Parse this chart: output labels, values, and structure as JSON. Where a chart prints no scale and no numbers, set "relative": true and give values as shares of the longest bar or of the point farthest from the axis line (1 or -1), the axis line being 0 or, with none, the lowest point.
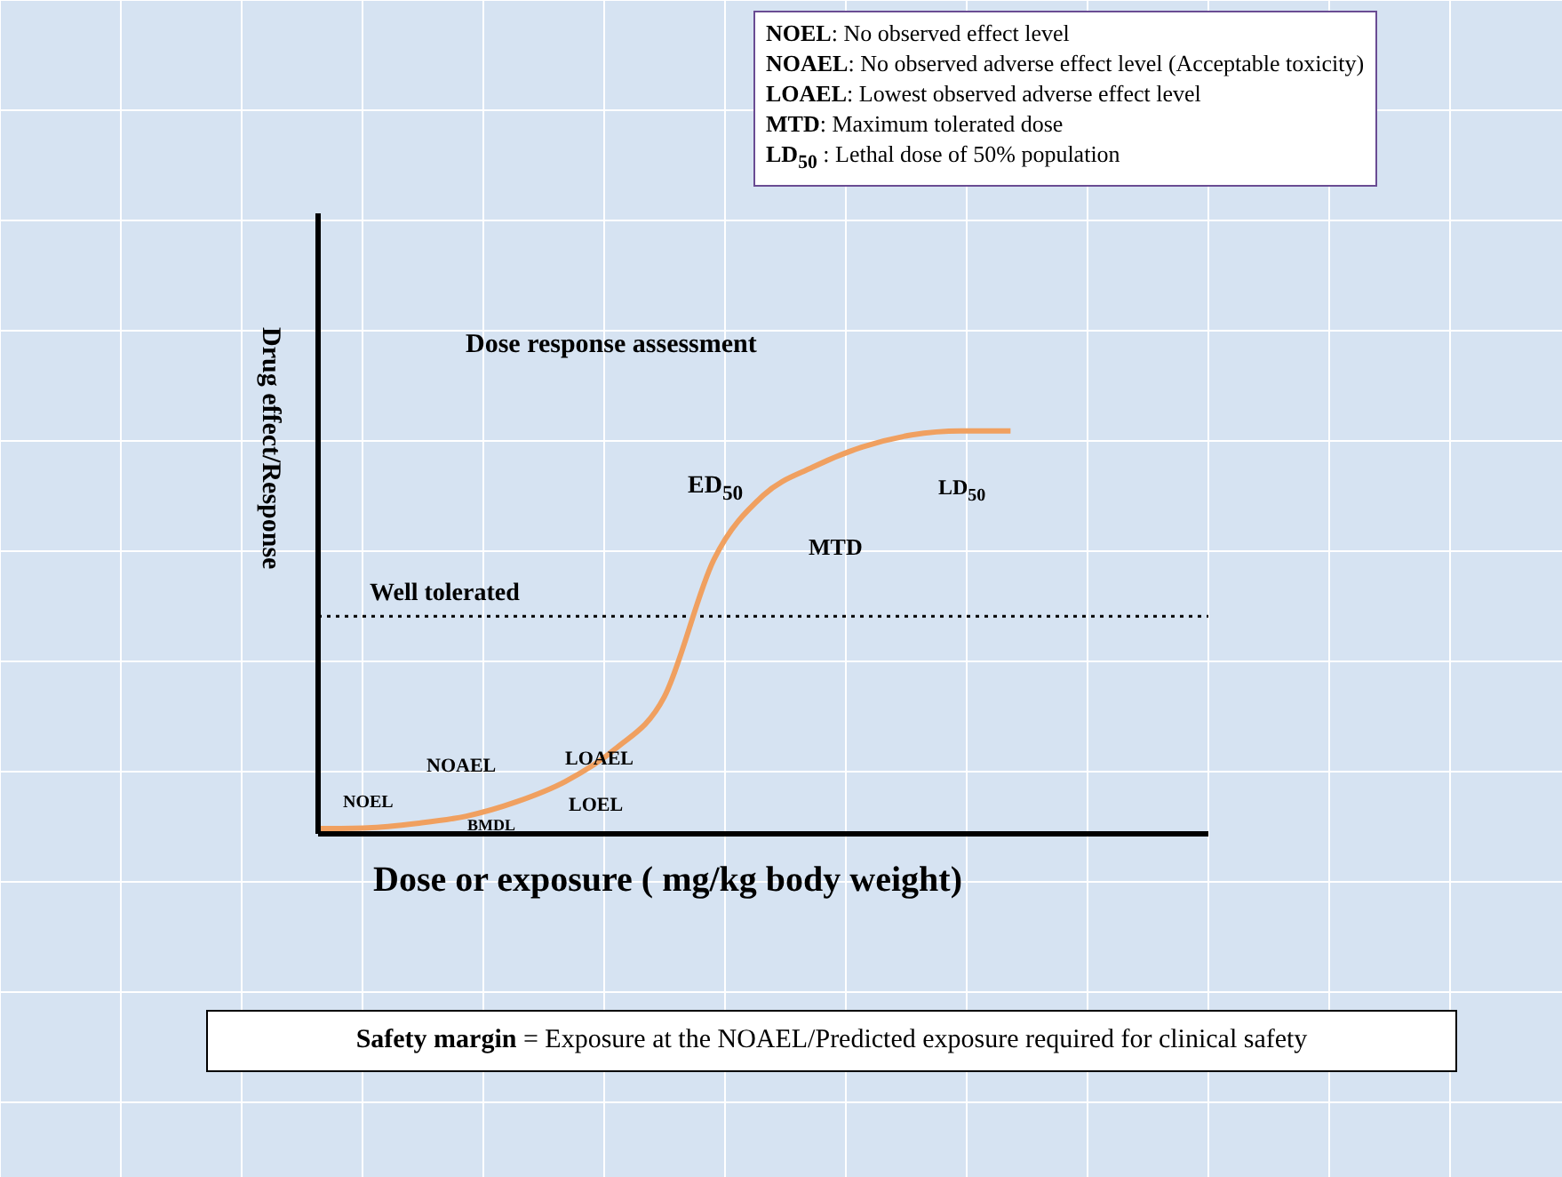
{
  "chart_data": {
    "type": "line",
    "relative": true,
    "title": "Dose response assessment",
    "xlabel": "Dose or exposure ( mg/kg body weight)",
    "ylabel": "Drug effect/Response",
    "categories": [
      null,
      null,
      null,
      null,
      null,
      null,
      null,
      null,
      null,
      null,
      null,
      null,
      null,
      null,
      null,
      null,
      null,
      null,
      null
    ],
    "series": [
      {
        "color": "#f0a060",
        "values": [
          0.013,
          0.015,
          0.026,
          0.044,
          0.079,
          0.13,
          0.21,
          0.34,
          0.68,
          0.84,
          0.91,
          0.96,
          0.99,
          1,
          1,
          null,
          null,
          null,
          null
        ]
      }
    ],
    "ref_lines": [
      {
        "axis": "y",
        "value": 0.54,
        "label": "Well tolerated",
        "color": "#000000",
        "line_style": "dotted"
      }
    ],
    "annotations": [
      "NOEL: No observed effect level",
      "NOAEL: No observed adverse effect level (Acceptable toxicity)",
      "LOAEL: Lowest observed adverse effect level",
      "MTD: Maximum tolerated dose",
      "LD$_{50}$ : Lethal dose of 50% population",
      "Safety margin = Exposure at the NOAEL/Predicted exposure required for clinical safety",
      "NOEL",
      "NOAEL",
      "LOAEL",
      "LOEL",
      "BMDL",
      "ED$_{50}$",
      "MTD",
      "LD$_{50}$"
    ],
    "legend": false,
    "grid": false,
    "marker": "none",
    "line_style": "solid"
  }
}
